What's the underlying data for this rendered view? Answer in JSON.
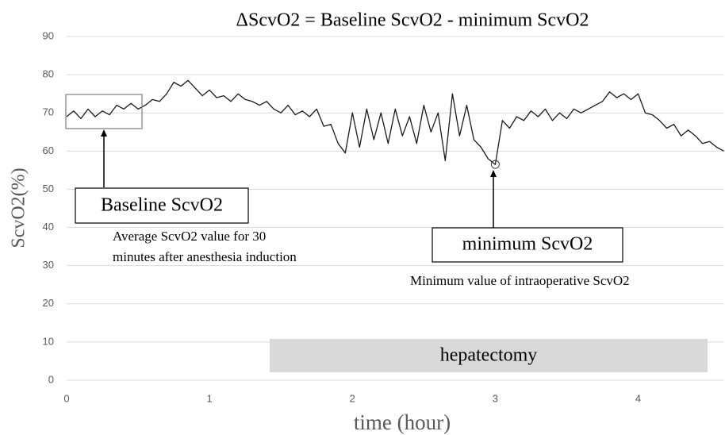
{
  "chart_data": {
    "type": "line",
    "title": "ΔScvO2 = Baseline ScvO2 - minimum ScvO2",
    "x_label": "time (hour)",
    "y_label": "ScvO2(%)",
    "x": [
      0,
      0.05,
      0.1,
      0.15,
      0.2,
      0.25,
      0.3,
      0.35,
      0.4,
      0.45,
      0.5,
      0.55,
      0.6,
      0.65,
      0.7,
      0.75,
      0.8,
      0.85,
      0.9,
      0.95,
      1.0,
      1.05,
      1.1,
      1.15,
      1.2,
      1.25,
      1.3,
      1.35,
      1.4,
      1.45,
      1.5,
      1.55,
      1.6,
      1.65,
      1.7,
      1.75,
      1.8,
      1.85,
      1.9,
      1.95,
      2.0,
      2.05,
      2.1,
      2.15,
      2.2,
      2.25,
      2.3,
      2.35,
      2.4,
      2.45,
      2.5,
      2.55,
      2.6,
      2.65,
      2.7,
      2.75,
      2.8,
      2.85,
      2.9,
      2.95,
      3.0,
      3.05,
      3.1,
      3.15,
      3.2,
      3.25,
      3.3,
      3.35,
      3.4,
      3.45,
      3.5,
      3.55,
      3.6,
      3.65,
      3.7,
      3.75,
      3.8,
      3.85,
      3.9,
      3.95,
      4.0,
      4.05,
      4.1,
      4.15,
      4.2,
      4.25,
      4.3,
      4.35,
      4.4,
      4.45,
      4.5,
      4.55,
      4.6
    ],
    "series": [
      {
        "color": "#1a1a1a",
        "values": [
          69,
          70.5,
          68.5,
          71,
          69,
          70.5,
          69.5,
          72,
          71,
          72.5,
          71,
          72,
          73.5,
          73,
          75,
          78,
          77,
          78.5,
          76.5,
          74.5,
          76,
          74,
          74.5,
          73,
          75,
          73.5,
          73,
          72,
          73,
          71,
          70,
          72,
          69.5,
          70.5,
          69,
          71,
          66.5,
          67,
          62,
          59.5,
          70,
          61,
          71,
          63,
          70,
          62,
          71,
          64,
          69,
          62,
          72,
          65,
          70,
          57.5,
          75,
          64,
          72,
          63,
          61,
          58,
          56.5,
          68,
          66,
          69,
          68,
          70.5,
          69,
          71,
          68,
          70,
          68.5,
          71,
          70,
          71,
          72,
          73,
          75.5,
          74,
          75,
          73.5,
          75,
          70,
          69.5,
          68,
          66,
          67,
          64,
          65.5,
          64,
          62,
          62.5,
          61,
          60
        ]
      }
    ],
    "xlim": [
      0,
      4.6
    ],
    "xticks": [
      0,
      1,
      2,
      3,
      4
    ],
    "ylim": [
      0,
      90
    ],
    "yticks": [
      0,
      10,
      20,
      30,
      40,
      50,
      60,
      70,
      80,
      90
    ],
    "grid": true,
    "annotations": {
      "baseline": "Baseline ScvO2",
      "baseline_note": [
        "Average ScvO2 value for 30",
        "minutes after anesthesia induction"
      ],
      "minimum": "minimum ScvO2",
      "minimum_note": "Minimum value of intraoperative ScvO2",
      "phase": "hepatectomy"
    }
  }
}
